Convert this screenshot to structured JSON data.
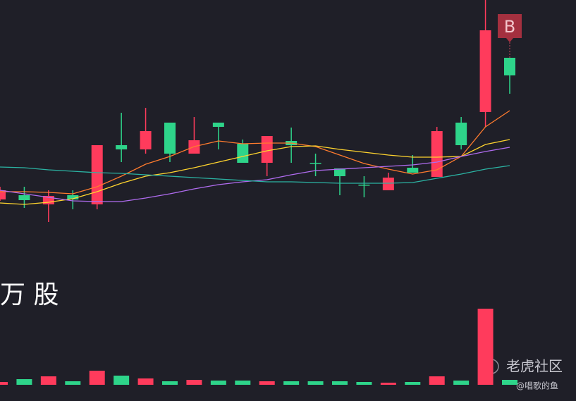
{
  "chart_data": {
    "type": "candlestick",
    "up_color": "#ff3b5c",
    "down_color": "#2ed48a",
    "ylim": [
      31,
      600
    ],
    "open": [
      317,
      323,
      310,
      323,
      310,
      394,
      388,
      426,
      382,
      426,
      396,
      369,
      400,
      369,
      361,
      338,
      330,
      362,
      349,
      426,
      441,
      518
    ],
    "high": [
      335,
      335,
      330,
      330,
      394,
      440,
      447,
      426,
      434,
      426,
      402,
      407,
      419,
      382,
      361,
      350,
      355,
      380,
      420,
      434,
      600,
      518
    ],
    "low": [
      315,
      305,
      285,
      303,
      303,
      370,
      382,
      370,
      382,
      388,
      369,
      350,
      369,
      350,
      323,
      320,
      330,
      355,
      349,
      388,
      420,
      467
    ],
    "close": [
      330,
      316,
      322,
      317,
      394,
      388,
      414,
      382,
      401,
      420,
      369,
      407,
      394,
      368,
      350,
      337,
      348,
      355,
      414,
      394,
      557,
      493
    ],
    "moving_averages": [
      {
        "color": "#ff7b2e",
        "values": [
          328,
          328,
          327,
          325,
          335,
          350,
          367,
          378,
          392,
          400,
          396,
          397,
          397,
          392,
          380,
          368,
          360,
          353,
          359,
          378,
          420,
          443
        ]
      },
      {
        "color": "#ffd42e",
        "values": [
          312,
          310,
          313,
          318,
          328,
          340,
          350,
          355,
          362,
          370,
          378,
          386,
          392,
          393,
          388,
          384,
          380,
          377,
          377,
          378,
          395,
          402
        ]
      },
      {
        "color": "#b06cf0",
        "values": [
          330,
          325,
          320,
          315,
          314,
          314,
          319,
          325,
          332,
          338,
          342,
          345,
          352,
          358,
          360,
          362,
          364,
          366,
          370,
          378,
          385,
          391
        ]
      },
      {
        "color": "#2bb3a3",
        "values": [
          363,
          362,
          359,
          357,
          355,
          354,
          352,
          350,
          348,
          346,
          344,
          342,
          342,
          341,
          340,
          340,
          340,
          341,
          347,
          353,
          360,
          365
        ]
      }
    ],
    "volume": {
      "ylim": [
        0,
        110
      ],
      "values": [
        4,
        8,
        12,
        5,
        20,
        13,
        9,
        5,
        7,
        6,
        6,
        5,
        5,
        5,
        5,
        4,
        3,
        4,
        12,
        6,
        108,
        7
      ]
    },
    "signal": {
      "text": "B",
      "index": 21
    },
    "volume_unit": "万 股",
    "watermark": "老虎社区",
    "author": "@唱歌的鱼"
  }
}
